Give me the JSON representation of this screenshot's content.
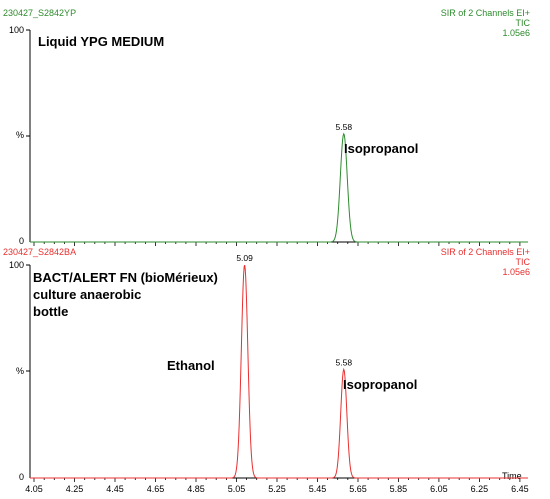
{
  "chart_data": [
    {
      "type": "line",
      "header_left": "230427_S2842YP",
      "header_right": [
        "SIR of 2 Channels EI+",
        "TIC",
        "1.05e6"
      ],
      "title_lines": [
        "Liquid YPG MEDIUM"
      ],
      "y_tick_labels": [
        "100",
        "%",
        "0"
      ],
      "ylim": [
        0,
        100
      ],
      "xlim": [
        4.03,
        6.49
      ],
      "color": "#2e8b2e",
      "peaks": [
        {
          "center": 5.58,
          "height": 51,
          "sigma": 0.017,
          "label": "5.58",
          "annotation": "Isopropanol"
        }
      ]
    },
    {
      "type": "line",
      "header_left": "230427_S2842BA",
      "header_right": [
        "SIR of 2 Channels EI+",
        "TIC",
        "1.05e6"
      ],
      "title_lines": [
        "BACT/ALERT FN (bioMérieux)",
        "culture anaerobic",
        "bottle"
      ],
      "y_tick_labels": [
        "100",
        "%",
        "0"
      ],
      "ylim": [
        0,
        100
      ],
      "xlim": [
        4.03,
        6.49
      ],
      "color": "#e83030",
      "x_ticks": [
        4.05,
        4.25,
        4.45,
        4.65,
        4.85,
        5.05,
        5.25,
        5.45,
        5.65,
        5.85,
        6.05,
        6.25,
        6.45
      ],
      "x_tick_labels": [
        "4.05",
        "4.25",
        "4.45",
        "4.65",
        "4.85",
        "5.05",
        "5.25",
        "5.45",
        "5.65",
        "5.85",
        "6.05",
        "6.25",
        "6.45"
      ],
      "x_axis_label": "Time",
      "peaks": [
        {
          "center": 5.09,
          "height": 100,
          "sigma": 0.016,
          "label": "5.09",
          "annotation": "Ethanol"
        },
        {
          "center": 5.58,
          "height": 51,
          "sigma": 0.015,
          "label": "5.58",
          "annotation": "Isopropanol"
        }
      ]
    }
  ]
}
